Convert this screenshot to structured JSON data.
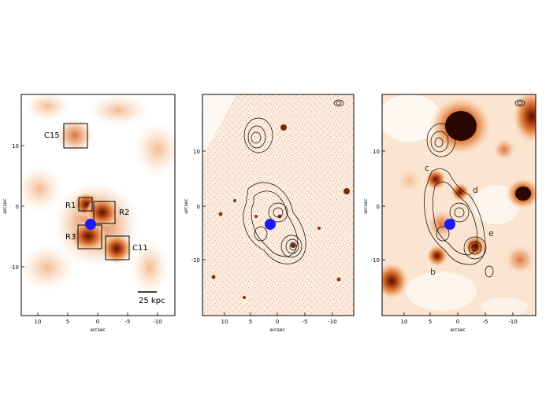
{
  "panels": [
    {
      "ylabel": "arcsec",
      "xlabel": "arcsec",
      "xticks": [
        "10",
        "5",
        "0",
        "-5",
        "-10"
      ],
      "yticks": [
        "10",
        "0",
        "-10"
      ],
      "regions": [
        "C15",
        "R1",
        "R2",
        "R3",
        "C11"
      ],
      "scalebar": "25 kpc"
    },
    {
      "ylabel": "arcsec",
      "xlabel": "arcsec",
      "xticks": [
        "10",
        "5",
        "0",
        "-5",
        "-10"
      ],
      "yticks": [
        "10",
        "0",
        "-10"
      ]
    },
    {
      "ylabel": "arcsec",
      "xlabel": "arcsec",
      "xticks": [
        "10",
        "5",
        "0",
        "-5",
        "-10"
      ],
      "yticks": [
        "10",
        "0",
        "-10"
      ],
      "labels": [
        "c",
        "d",
        "e",
        "b"
      ]
    }
  ],
  "colors": {
    "heat_dark": "#5a1a00",
    "heat_mid": "#c8501a",
    "heat_light": "#f7cfa8",
    "marker": "#1a1aff"
  }
}
